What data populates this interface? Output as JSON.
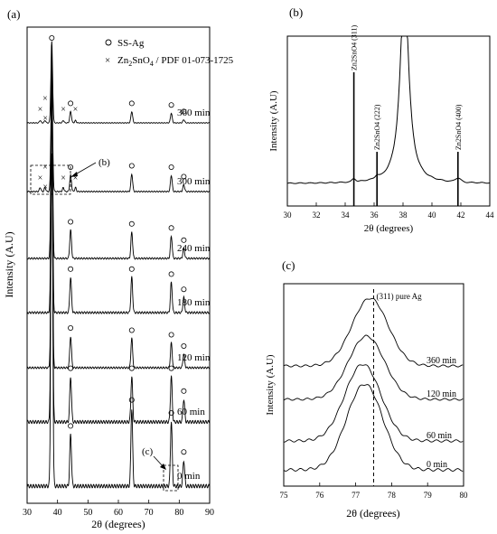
{
  "figure": {
    "panel_labels": [
      "(a)",
      "(b)",
      "(c)"
    ]
  },
  "chart_data": [
    {
      "id": "a",
      "type": "line",
      "xlabel": "2θ (degrees)",
      "ylabel": "Intensity (A.U)",
      "xlim": [
        30,
        90
      ],
      "xticks": [
        30,
        40,
        50,
        60,
        70,
        80,
        90
      ],
      "legend": [
        {
          "marker": "o",
          "label": "SS-Ag"
        },
        {
          "marker": "x",
          "label": "Zn2SnO4 / PDF 01-073-1725"
        }
      ],
      "legend_position": "top-right",
      "ag_peaks": [
        38.1,
        44.3,
        64.4,
        77.4,
        81.5
      ],
      "zn_peaks": [
        34.3,
        35.9,
        41.9,
        45.9
      ],
      "series": [
        {
          "name": "0 min",
          "peak_heights": [
            1.0,
            0.12,
            0.18,
            0.15,
            0.06
          ]
        },
        {
          "name": "60 min",
          "peak_heights": [
            0.9,
            0.12,
            0.12,
            0.12,
            0.06
          ]
        },
        {
          "name": "120 min",
          "peak_heights": [
            0.95,
            0.14,
            0.13,
            0.11,
            0.06
          ]
        },
        {
          "name": "180 min",
          "peak_heights": [
            0.9,
            0.14,
            0.14,
            0.12,
            0.06
          ]
        },
        {
          "name": "240 min",
          "peak_heights": [
            0.9,
            0.14,
            0.13,
            0.11,
            0.05
          ]
        },
        {
          "name": "300 min",
          "peak_heights": [
            0.85,
            0.12,
            0.13,
            0.12,
            0.05
          ]
        },
        {
          "name": "360 min",
          "peak_heights": [
            1.0,
            0.14,
            0.14,
            0.12,
            0.04
          ]
        }
      ],
      "annotations": [
        "(b)",
        "(c)"
      ]
    },
    {
      "id": "b",
      "type": "line",
      "xlabel": "2θ (degrees)",
      "ylabel": "Intensity (A.U)",
      "xlim": [
        30,
        44
      ],
      "xticks": [
        30,
        32,
        34,
        36,
        38,
        40,
        42,
        44
      ],
      "reference_lines": [
        {
          "x": 34.6,
          "label": "Zn2SnO4 (311)"
        },
        {
          "x": 36.2,
          "label": "Zn2SnO4 (222)"
        },
        {
          "x": 41.8,
          "label": "Zn2SnO4 (400)"
        }
      ]
    },
    {
      "id": "c",
      "type": "line",
      "xlabel": "2θ (degrees)",
      "ylabel": "Intensity (A.U)",
      "xlim": [
        75,
        80
      ],
      "xticks": [
        75,
        76,
        77,
        78,
        79,
        80
      ],
      "reference_line": {
        "x": 77.5,
        "label": "(311) pure Ag"
      },
      "series": [
        {
          "name": "0 min",
          "peak_x": 77.25
        },
        {
          "name": "60 min",
          "peak_x": 77.2
        },
        {
          "name": "120 min",
          "peak_x": 77.3
        },
        {
          "name": "360 min",
          "peak_x": 77.4
        }
      ]
    }
  ]
}
